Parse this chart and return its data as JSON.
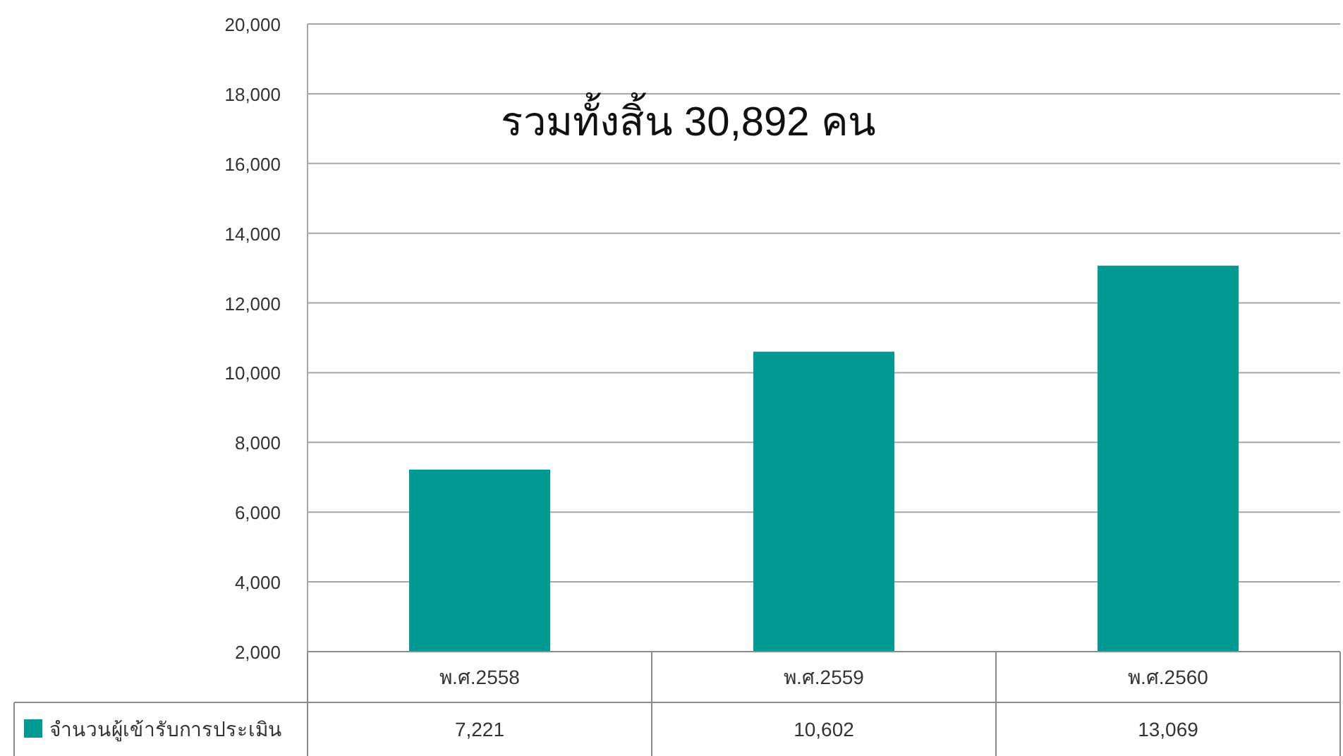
{
  "chart_data": {
    "type": "bar",
    "title": "รวมทั้งสิ้น 30,892 คน",
    "categories": [
      "พ.ศ.2558",
      "พ.ศ.2559",
      "พ.ศ.2560"
    ],
    "series": [
      {
        "name": "จำนวนผู้เข้ารับการประเมิน",
        "color": "#009a93",
        "values": [
          7221,
          10602,
          13069
        ],
        "value_labels": [
          "7,221",
          "10,602",
          "13,069"
        ]
      }
    ],
    "ylim": [
      2000,
      20000
    ],
    "yticks": [
      {
        "value": 2000,
        "label": "2,000"
      },
      {
        "value": 4000,
        "label": "4,000"
      },
      {
        "value": 6000,
        "label": "6,000"
      },
      {
        "value": 8000,
        "label": "8,000"
      },
      {
        "value": 10000,
        "label": "10,000"
      },
      {
        "value": 12000,
        "label": "12,000"
      },
      {
        "value": 14000,
        "label": "14,000"
      },
      {
        "value": 16000,
        "label": "16,000"
      },
      {
        "value": 18000,
        "label": "18,000"
      },
      {
        "value": 20000,
        "label": "20,000"
      }
    ],
    "grid": "y",
    "legend": "bottom left"
  }
}
